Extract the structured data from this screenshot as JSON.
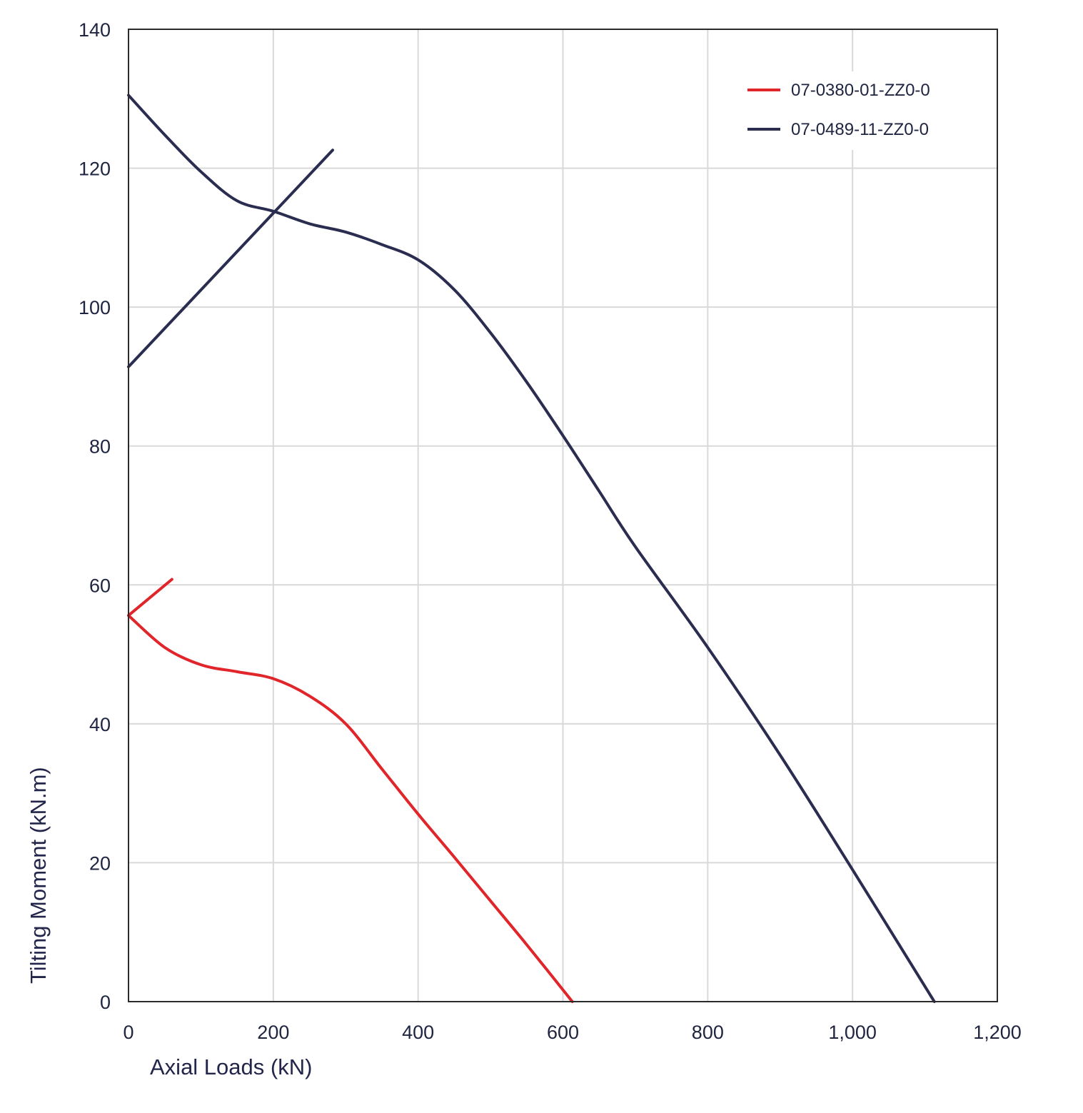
{
  "chart_data": {
    "type": "line",
    "xlabel": "Axial Loads (kN)",
    "ylabel": "Tilting Moment (kN.m)",
    "xlim": [
      0,
      1200
    ],
    "ylim": [
      0,
      140
    ],
    "x_ticks": [
      0,
      200,
      400,
      600,
      800,
      1000,
      1200
    ],
    "x_tick_labels": [
      "0",
      "200",
      "400",
      "600",
      "800",
      "1,000",
      "1,200"
    ],
    "y_ticks": [
      0,
      20,
      40,
      60,
      80,
      100,
      120,
      140
    ],
    "y_tick_labels": [
      "0",
      "20",
      "40",
      "60",
      "80",
      "100",
      "120",
      "140"
    ],
    "grid": true,
    "legend_position": "top-right",
    "series": [
      {
        "name": "07-0380-01-ZZ0-0",
        "color": "#e0252b",
        "segments": [
          [
            [
              60,
              60.8
            ],
            [
              0,
              55.6
            ]
          ],
          [
            [
              0,
              55.6
            ],
            [
              50,
              51
            ],
            [
              100,
              48.5
            ],
            [
              150,
              47.5
            ],
            [
              200,
              46.5
            ],
            [
              250,
              44
            ],
            [
              300,
              40
            ],
            [
              350,
              33.5
            ],
            [
              400,
              27
            ],
            [
              450,
              20.8
            ],
            [
              500,
              14.5
            ],
            [
              550,
              8.2
            ],
            [
              613,
              0
            ]
          ]
        ]
      },
      {
        "name": "07-0489-11-ZZ0-0",
        "color": "#2a2d4f",
        "segments": [
          [
            [
              0,
              91.4
            ],
            [
              282,
              122.6
            ]
          ],
          [
            [
              0,
              130.5
            ],
            [
              50,
              124.8
            ],
            [
              100,
              119.5
            ],
            [
              150,
              115.3
            ],
            [
              200,
              113.8
            ],
            [
              250,
              112
            ],
            [
              300,
              110.8
            ],
            [
              350,
              109
            ],
            [
              400,
              106.8
            ],
            [
              450,
              102.5
            ],
            [
              500,
              96.3
            ],
            [
              550,
              89.2
            ],
            [
              600,
              81.5
            ],
            [
              650,
              73.5
            ],
            [
              700,
              65.5
            ],
            [
              800,
              51
            ],
            [
              900,
              35.5
            ],
            [
              1000,
              19
            ],
            [
              1113,
              0
            ]
          ]
        ]
      }
    ]
  }
}
